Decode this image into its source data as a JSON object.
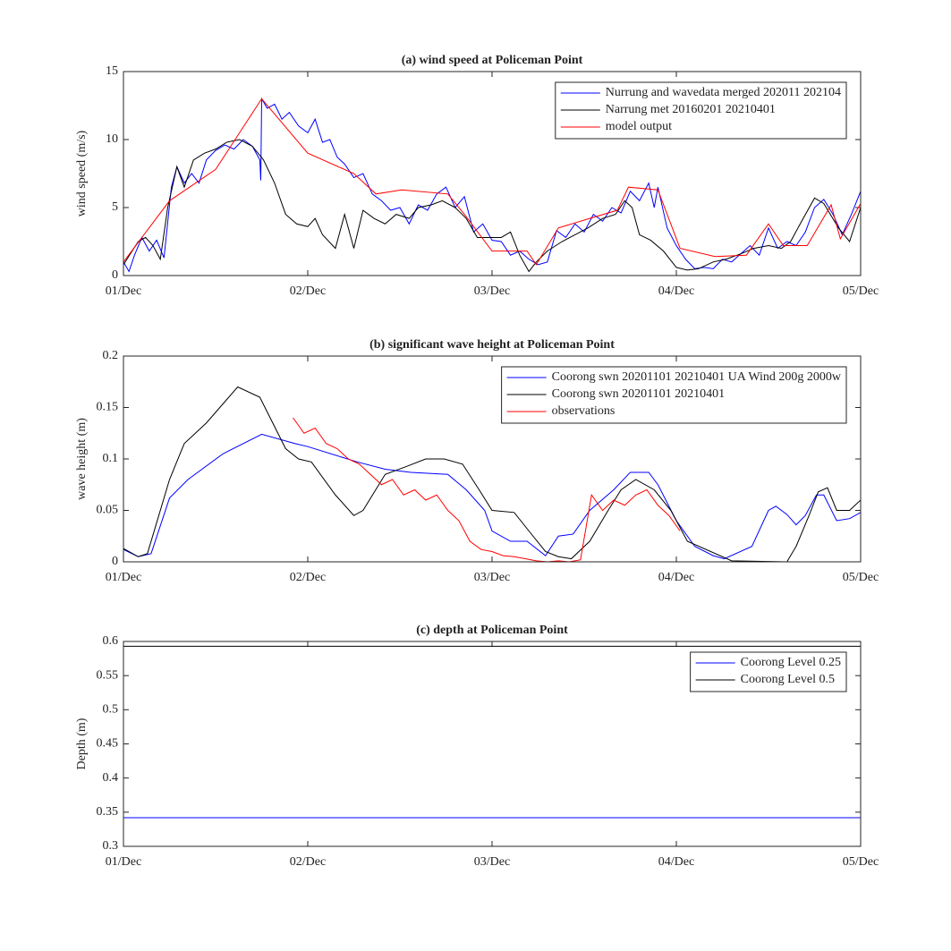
{
  "chart_data": [
    {
      "type": "line",
      "title": "(a) wind speed at Policeman Point",
      "ylabel": "wind speed (m/s)",
      "xlim": [
        0,
        4
      ],
      "xticks": [
        {
          "value": 0,
          "label": "01/Dec"
        },
        {
          "value": 1,
          "label": "02/Dec"
        },
        {
          "value": 2,
          "label": "03/Dec"
        },
        {
          "value": 3,
          "label": "04/Dec"
        },
        {
          "value": 4,
          "label": "05/Dec"
        }
      ],
      "ylim": [
        0,
        15
      ],
      "yticks": [
        0,
        5,
        10,
        15
      ],
      "grid": false,
      "legend": "upper right",
      "series": [
        {
          "name": "Nurrung and wavedata merged 202011 202104",
          "color": "#0000ff",
          "x": [
            0,
            0.03,
            0.06,
            0.1,
            0.14,
            0.18,
            0.22,
            0.26,
            0.29,
            0.33,
            0.37,
            0.41,
            0.45,
            0.5,
            0.55,
            0.6,
            0.65,
            0.7,
            0.74,
            0.745,
            0.75,
            0.78,
            0.82,
            0.86,
            0.9,
            0.95,
            1.0,
            1.04,
            1.08,
            1.12,
            1.16,
            1.2,
            1.25,
            1.3,
            1.35,
            1.4,
            1.45,
            1.5,
            1.55,
            1.6,
            1.65,
            1.7,
            1.75,
            1.8,
            1.85,
            1.9,
            1.95,
            2.0,
            2.05,
            2.1,
            2.15,
            2.2,
            2.25,
            2.3,
            2.35,
            2.4,
            2.45,
            2.5,
            2.55,
            2.6,
            2.65,
            2.7,
            2.75,
            2.8,
            2.85,
            2.88,
            2.9,
            2.95,
            3.0,
            3.05,
            3.1,
            3.15,
            3.2,
            3.25,
            3.3,
            3.35,
            3.4,
            3.45,
            3.5,
            3.55,
            3.6,
            3.65,
            3.7,
            3.75,
            3.8,
            3.85,
            3.9,
            3.95,
            4.0
          ],
          "values": [
            1.0,
            0.3,
            1.5,
            2.8,
            1.8,
            2.6,
            1.3,
            6.5,
            8.0,
            6.8,
            7.5,
            6.8,
            8.5,
            9.2,
            9.6,
            9.3,
            10.0,
            9.5,
            8.5,
            7.0,
            13.0,
            12.3,
            12.6,
            11.5,
            12.0,
            11.0,
            10.5,
            11.5,
            9.8,
            10.0,
            8.7,
            8.2,
            7.2,
            7.5,
            6.0,
            5.5,
            4.8,
            5.0,
            3.8,
            5.2,
            4.8,
            6.0,
            6.5,
            5.0,
            5.8,
            3.2,
            3.8,
            2.6,
            2.5,
            1.5,
            1.8,
            1.2,
            0.8,
            1.0,
            3.3,
            2.8,
            3.8,
            3.2,
            4.5,
            4.0,
            5.0,
            4.6,
            6.2,
            5.5,
            6.8,
            5.0,
            6.5,
            3.5,
            2.2,
            1.2,
            0.5,
            0.6,
            0.5,
            1.2,
            1.0,
            1.6,
            2.2,
            1.5,
            3.5,
            2.0,
            2.5,
            2.2,
            3.2,
            5.0,
            5.6,
            4.5,
            3.0,
            4.5,
            6.2
          ]
        },
        {
          "name": "Narrung met 20160201 20210401",
          "color": "#000000",
          "x": [
            0,
            0.08,
            0.12,
            0.16,
            0.2,
            0.24,
            0.29,
            0.33,
            0.38,
            0.44,
            0.5,
            0.56,
            0.63,
            0.7,
            0.76,
            0.82,
            0.88,
            0.94,
            1.0,
            1.04,
            1.08,
            1.15,
            1.2,
            1.25,
            1.3,
            1.36,
            1.42,
            1.48,
            1.55,
            1.6,
            1.67,
            1.73,
            1.8,
            1.86,
            1.92,
            2.0,
            2.05,
            2.1,
            2.15,
            2.2,
            2.24,
            2.3,
            2.38,
            2.45,
            2.52,
            2.6,
            2.67,
            2.72,
            2.76,
            2.8,
            2.86,
            2.93,
            3.0,
            3.06,
            3.12,
            3.2,
            3.27,
            3.35,
            3.42,
            3.5,
            3.57,
            3.62,
            3.68,
            3.75,
            3.8,
            3.88,
            3.94,
            4.0
          ],
          "values": [
            0.8,
            2.5,
            2.8,
            2.2,
            1.2,
            5.0,
            8.0,
            6.5,
            8.5,
            9.0,
            9.3,
            9.8,
            10.0,
            9.5,
            8.5,
            6.8,
            4.5,
            3.8,
            3.6,
            4.2,
            3.0,
            2.0,
            4.5,
            2.0,
            4.8,
            4.2,
            3.8,
            4.5,
            4.2,
            5.0,
            5.2,
            5.5,
            5.0,
            4.2,
            2.8,
            2.8,
            2.8,
            3.2,
            1.5,
            0.3,
            1.0,
            1.8,
            2.5,
            3.0,
            3.5,
            4.2,
            4.5,
            5.5,
            5.0,
            3.0,
            2.6,
            1.8,
            0.6,
            0.4,
            0.5,
            1.0,
            1.2,
            1.6,
            2.0,
            2.2,
            2.0,
            2.5,
            4.0,
            5.7,
            5.3,
            3.5,
            2.5,
            5.0
          ]
        },
        {
          "name": "model output",
          "color": "#ff0000",
          "x": [
            0,
            0.25,
            0.5,
            0.75,
            1.0,
            1.25,
            1.37,
            1.51,
            1.76,
            1.85,
            2.0,
            2.19,
            2.24,
            2.36,
            2.53,
            2.68,
            2.74,
            2.9,
            3.02,
            3.21,
            3.38,
            3.5,
            3.58,
            3.71,
            3.84,
            3.89,
            4.0
          ],
          "values": [
            1.0,
            5.5,
            7.8,
            13.0,
            9.0,
            7.5,
            6.0,
            6.3,
            6.0,
            4.5,
            1.8,
            1.8,
            0.8,
            3.5,
            4.2,
            4.8,
            6.5,
            6.3,
            2.0,
            1.4,
            1.5,
            3.8,
            2.2,
            2.2,
            5.2,
            2.7,
            5.3
          ]
        }
      ]
    },
    {
      "type": "line",
      "title": "(b) significant wave height at Policeman Point",
      "ylabel": "wave height (m)",
      "xlim": [
        0,
        4
      ],
      "xticks": [
        {
          "value": 0,
          "label": "01/Dec"
        },
        {
          "value": 1,
          "label": "02/Dec"
        },
        {
          "value": 2,
          "label": "03/Dec"
        },
        {
          "value": 3,
          "label": "04/Dec"
        },
        {
          "value": 4,
          "label": "05/Dec"
        }
      ],
      "ylim": [
        0,
        0.2
      ],
      "yticks": [
        0,
        0.05,
        0.1,
        0.15,
        0.2
      ],
      "grid": false,
      "legend": "upper right",
      "series": [
        {
          "name": "Coorong swn 20201101 20210401 UA Wind 200g 2000w",
          "color": "#0000ff",
          "x": [
            0,
            0.08,
            0.15,
            0.25,
            0.35,
            0.54,
            0.75,
            0.93,
            1.0,
            1.27,
            1.42,
            1.56,
            1.76,
            1.86,
            1.96,
            2.0,
            2.1,
            2.19,
            2.29,
            2.36,
            2.44,
            2.53,
            2.66,
            2.75,
            2.85,
            2.9,
            3.0,
            3.1,
            3.2,
            3.26,
            3.41,
            3.5,
            3.54,
            3.6,
            3.65,
            3.7,
            3.76,
            3.8,
            3.87,
            3.94,
            4.0
          ],
          "values": [
            0.012,
            0.005,
            0.008,
            0.062,
            0.08,
            0.105,
            0.124,
            0.115,
            0.112,
            0.097,
            0.09,
            0.087,
            0.085,
            0.07,
            0.05,
            0.03,
            0.02,
            0.02,
            0.006,
            0.025,
            0.027,
            0.05,
            0.07,
            0.087,
            0.087,
            0.075,
            0.04,
            0.015,
            0.006,
            0.003,
            0.015,
            0.05,
            0.054,
            0.046,
            0.036,
            0.045,
            0.065,
            0.065,
            0.04,
            0.042,
            0.048
          ]
        },
        {
          "name": "Coorong swn 20201101 20210401",
          "color": "#000000",
          "x": [
            0,
            0.08,
            0.13,
            0.25,
            0.33,
            0.45,
            0.62,
            0.74,
            0.81,
            0.88,
            0.95,
            1.02,
            1.15,
            1.25,
            1.3,
            1.42,
            1.54,
            1.64,
            1.74,
            1.84,
            1.93,
            2.0,
            2.12,
            2.2,
            2.29,
            2.36,
            2.43,
            2.53,
            2.63,
            2.7,
            2.78,
            2.88,
            2.97,
            3.06,
            3.3,
            3.6,
            3.65,
            3.72,
            3.77,
            3.82,
            3.87,
            3.94,
            4.0
          ],
          "values": [
            0.013,
            0.005,
            0.008,
            0.08,
            0.115,
            0.135,
            0.17,
            0.16,
            0.135,
            0.11,
            0.1,
            0.097,
            0.065,
            0.045,
            0.05,
            0.085,
            0.093,
            0.1,
            0.1,
            0.095,
            0.07,
            0.05,
            0.048,
            0.03,
            0.01,
            0.005,
            0.003,
            0.02,
            0.05,
            0.07,
            0.08,
            0.07,
            0.05,
            0.02,
            0.001,
            0.0,
            0.015,
            0.045,
            0.068,
            0.072,
            0.05,
            0.05,
            0.06
          ]
        },
        {
          "name": "observations",
          "color": "#ff0000",
          "x": [
            0.92,
            0.98,
            1.04,
            1.1,
            1.16,
            1.22,
            1.28,
            1.34,
            1.4,
            1.46,
            1.52,
            1.58,
            1.64,
            1.7,
            1.76,
            1.82,
            1.88,
            1.94,
            2.0,
            2.06,
            2.12,
            2.18,
            2.24,
            2.3,
            2.36,
            2.42,
            2.48,
            2.54,
            2.6,
            2.66,
            2.72,
            2.78,
            2.84,
            2.9,
            2.96,
            3.02
          ],
          "values": [
            0.14,
            0.125,
            0.13,
            0.115,
            0.11,
            0.1,
            0.095,
            0.085,
            0.075,
            0.08,
            0.065,
            0.07,
            0.06,
            0.065,
            0.05,
            0.04,
            0.02,
            0.012,
            0.01,
            0.006,
            0.005,
            0.003,
            0.001,
            0.0,
            0.001,
            0.0,
            0.002,
            0.065,
            0.05,
            0.06,
            0.055,
            0.065,
            0.07,
            0.055,
            0.045,
            0.03
          ]
        }
      ]
    },
    {
      "type": "line",
      "title": "(c) depth at Policeman Point",
      "ylabel": "Depth (m)",
      "xlim": [
        0,
        4
      ],
      "xticks": [
        {
          "value": 0,
          "label": "01/Dec"
        },
        {
          "value": 1,
          "label": "02/Dec"
        },
        {
          "value": 2,
          "label": "03/Dec"
        },
        {
          "value": 3,
          "label": "04/Dec"
        },
        {
          "value": 4,
          "label": "05/Dec"
        }
      ],
      "ylim": [
        0.3,
        0.6
      ],
      "yticks": [
        0.3,
        0.35,
        0.4,
        0.45,
        0.5,
        0.55,
        0.6
      ],
      "grid": false,
      "legend": "upper right",
      "series": [
        {
          "name": "Coorong Level 0.25",
          "color": "#0000ff",
          "x": [
            0,
            4
          ],
          "values": [
            0.342,
            0.342
          ]
        },
        {
          "name": "Coorong Level 0.5",
          "color": "#000000",
          "x": [
            0,
            4
          ],
          "values": [
            0.593,
            0.593
          ]
        }
      ]
    }
  ]
}
